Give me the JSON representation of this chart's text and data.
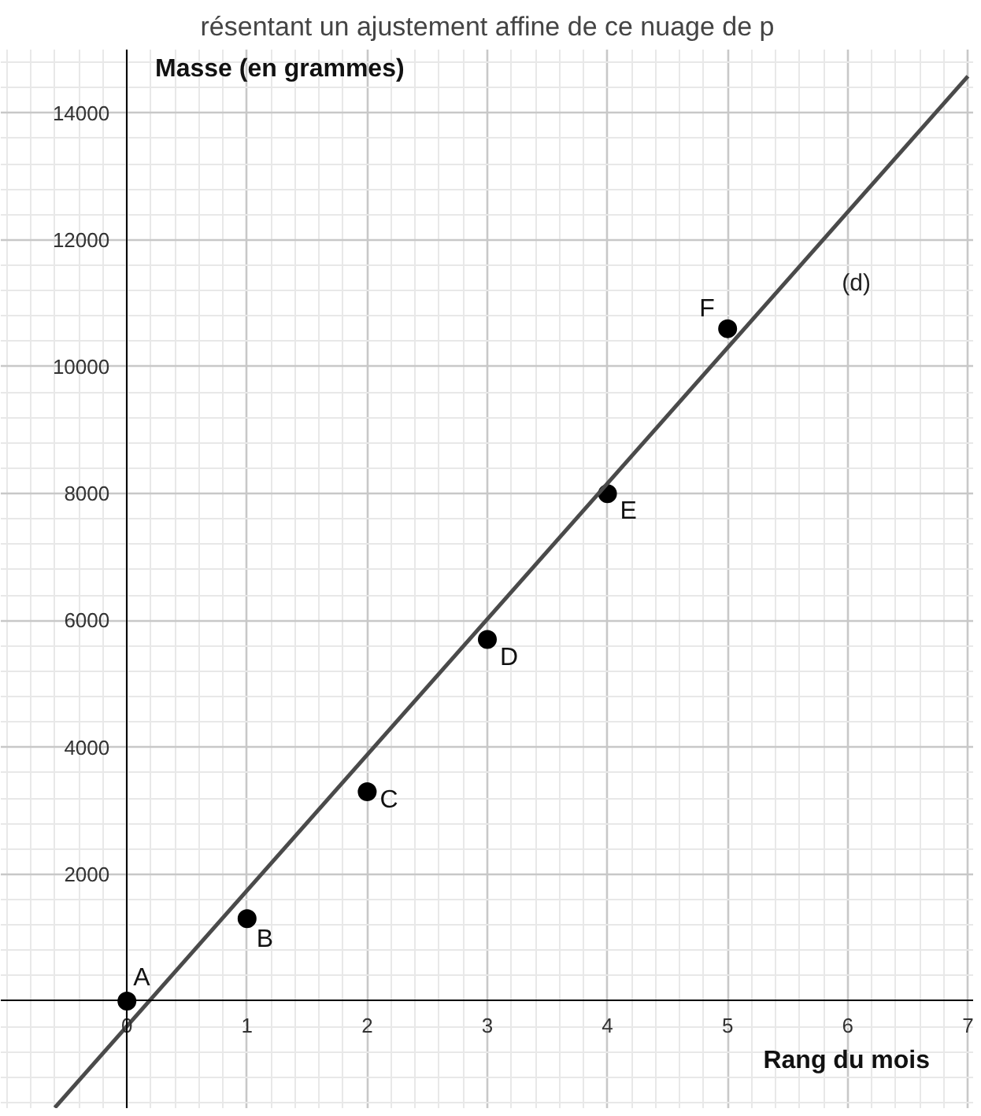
{
  "chart_data": {
    "type": "scatter",
    "title": "résentant un ajustement affine de ce nuage de p",
    "xlabel": "Rang du mois",
    "ylabel": "Masse (en grammes)",
    "xlim": [
      -1.05,
      7.05
    ],
    "ylim": [
      -1700,
      15000
    ],
    "xticks": [
      0,
      1,
      2,
      3,
      4,
      5,
      6,
      7
    ],
    "yticks": [
      2000,
      4000,
      6000,
      8000,
      10000,
      12000,
      14000
    ],
    "grid": true,
    "marker": "circle",
    "series": [
      {
        "color": "#000000",
        "x": [
          0,
          1,
          2,
          3,
          4,
          5
        ],
        "values": [
          0,
          1300,
          3300,
          5700,
          8000,
          10600
        ]
      },
      {
        "type": "line",
        "marker": "none",
        "name": "(d)",
        "color": "#4a4a4a",
        "x": [
          -0.6,
          7.0
        ],
        "values": [
          -1680,
          14580
        ]
      }
    ],
    "annotations": [
      {
        "text": "A",
        "x": 0,
        "y": 0
      },
      {
        "text": "B",
        "x": 1,
        "y": 1300
      },
      {
        "text": "C",
        "x": 2,
        "y": 3300
      },
      {
        "text": "D",
        "x": 3,
        "y": 5700
      },
      {
        "text": "E",
        "x": 4,
        "y": 8000
      },
      {
        "text": "F",
        "x": 5,
        "y": 10600
      }
    ]
  }
}
